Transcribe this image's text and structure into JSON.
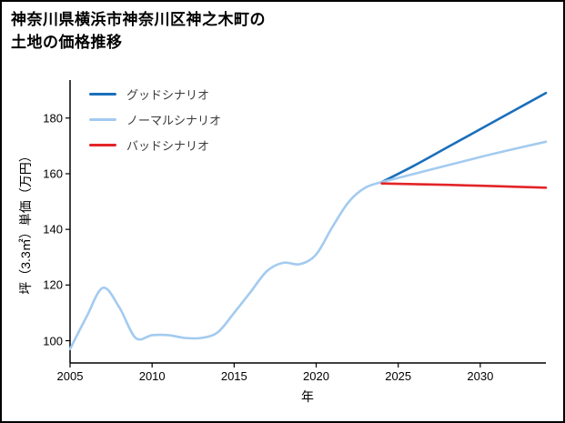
{
  "chart_data": {
    "type": "line",
    "title": "神奈川県横浜市神奈川区神之木町の土地の価格推移",
    "title_lines": [
      "神奈川県横浜市神奈川区神之木町の",
      "土地の価格推移"
    ],
    "xlabel": "年",
    "ylabel": "坪（3.3㎡）単価（万円）",
    "xlim": [
      2005,
      2034
    ],
    "ylim": [
      92,
      193
    ],
    "xticks": [
      2005,
      2010,
      2015,
      2020,
      2025,
      2030
    ],
    "yticks": [
      100,
      120,
      140,
      160,
      180
    ],
    "grid": false,
    "legend_position": "upper-left",
    "legend": [
      {
        "key": "good",
        "label": "グッドシナリオ",
        "color": "#1b6fba"
      },
      {
        "key": "normal",
        "label": "ノーマルシナリオ",
        "color": "#a3cbef"
      },
      {
        "key": "bad",
        "label": "バッドシナリオ",
        "color": "#e22428"
      }
    ],
    "series": [
      {
        "key": "historical",
        "color": "#a3cbef",
        "x": [
          2005,
          2006,
          2007,
          2008,
          2009,
          2010,
          2011,
          2012,
          2013,
          2014,
          2015,
          2016,
          2017,
          2018,
          2019,
          2020,
          2021,
          2022,
          2023,
          2024
        ],
        "y": [
          97,
          108.5,
          119,
          112,
          101,
          102,
          102,
          101,
          101,
          103,
          110,
          117.5,
          125,
          128,
          127.5,
          131,
          141,
          150,
          155,
          157
        ]
      },
      {
        "key": "good",
        "color": "#1b6fba",
        "x": [
          2024,
          2026,
          2028,
          2030,
          2032,
          2034
        ],
        "y": [
          157,
          163,
          169.5,
          176,
          182.5,
          189
        ]
      },
      {
        "key": "normal",
        "color": "#a3cbef",
        "x": [
          2024,
          2026,
          2028,
          2030,
          2032,
          2034
        ],
        "y": [
          157,
          160,
          163,
          166,
          168.8,
          171.5
        ]
      },
      {
        "key": "bad",
        "color": "#e22428",
        "x": [
          2024,
          2028,
          2031,
          2034
        ],
        "y": [
          156.5,
          156,
          155.5,
          155
        ]
      }
    ]
  }
}
